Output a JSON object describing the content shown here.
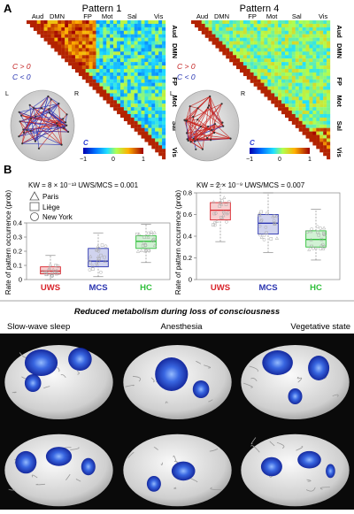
{
  "panel_a": {
    "letter": "A",
    "patterns": [
      {
        "title": "Pattern 1",
        "top_labels": [
          "Aud",
          "DMN",
          "FP",
          "Mot",
          "Sal",
          "Vis"
        ],
        "side_labels": [
          "Aud",
          "DMN",
          "FP",
          "Mot",
          "Sal",
          "Vis"
        ],
        "cbar_label": "C"
      },
      {
        "title": "Pattern 4",
        "top_labels": [
          "Aud",
          "DMN",
          "FP",
          "Mot",
          "Sal",
          "Vis"
        ],
        "side_labels": [
          "Aud",
          "DMN",
          "FP",
          "Mot",
          "Sal",
          "Vis"
        ],
        "cbar_label": "C"
      }
    ],
    "legend_pos": "C > 0",
    "legend_neg": "C < 0",
    "brain_left": "L",
    "brain_right": "R",
    "cbar_ticks": [
      "−1",
      "0",
      "1"
    ]
  },
  "panel_b": {
    "letter": "B",
    "ylabel": "Rate of pattern occurrence (prob)",
    "legend_items": [
      "Paris",
      "Liège",
      "New York"
    ],
    "chart_data": [
      {
        "type": "box",
        "stats_text": "KW = 8 × 10⁻¹³  UWS/MCS = 0.001",
        "ylim": [
          0,
          0.4
        ],
        "yticks": [
          "0",
          "0.1",
          "0.2",
          "0.3",
          "0.4"
        ],
        "categories": [
          "UWS",
          "MCS",
          "HC"
        ],
        "colors": [
          "#d9242b",
          "#2b35b0",
          "#2fbf3a"
        ],
        "boxes": [
          {
            "low": 0.0,
            "q1": 0.04,
            "median": 0.06,
            "q3": 0.09,
            "high": 0.17
          },
          {
            "low": 0.02,
            "q1": 0.09,
            "median": 0.13,
            "q3": 0.22,
            "high": 0.33
          },
          {
            "low": 0.12,
            "q1": 0.22,
            "median": 0.27,
            "q3": 0.31,
            "high": 0.39
          }
        ]
      },
      {
        "type": "box",
        "stats_text": "KW = 2 × 10⁻⁹  UWS/MCS = 0.007",
        "ylim": [
          0,
          0.8
        ],
        "yticks": [
          "0",
          "0.2",
          "0.4",
          "0.6",
          "0.8"
        ],
        "categories": [
          "UWS",
          "MCS",
          "HC"
        ],
        "colors": [
          "#d9242b",
          "#2b35b0",
          "#2fbf3a"
        ],
        "boxes": [
          {
            "low": 0.35,
            "q1": 0.55,
            "median": 0.64,
            "q3": 0.71,
            "high": 0.88
          },
          {
            "low": 0.25,
            "q1": 0.42,
            "median": 0.52,
            "q3": 0.6,
            "high": 0.8
          },
          {
            "low": 0.18,
            "q1": 0.3,
            "median": 0.37,
            "q3": 0.45,
            "high": 0.65
          }
        ]
      }
    ]
  },
  "panel_c": {
    "title": "Reduced metabolism during loss of consciousness",
    "columns": [
      "Slow-wave sleep",
      "Anesthesia",
      "Vegetative state"
    ]
  }
}
